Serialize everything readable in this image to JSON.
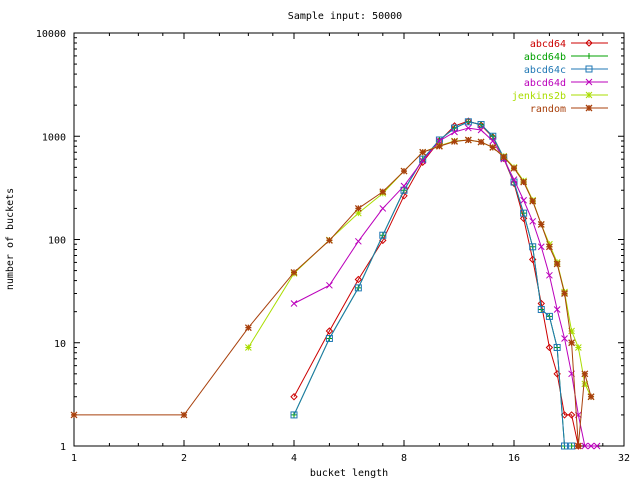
{
  "chart_data": {
    "type": "line",
    "title": "Sample input: 50000",
    "xlabel": "bucket length",
    "ylabel": "number of buckets",
    "xscale": "log2",
    "yscale": "log10",
    "xlim": [
      1,
      32
    ],
    "ylim": [
      1,
      10000
    ],
    "xticks": [
      1,
      2,
      4,
      8,
      16,
      32
    ],
    "yticks": [
      1,
      10,
      100,
      1000,
      10000
    ],
    "grid": false,
    "legend_position": "top-right",
    "series": [
      {
        "name": "abcd64",
        "color": "#cc0000",
        "marker": "diamond",
        "points": [
          [
            4,
            3
          ],
          [
            5,
            13
          ],
          [
            6,
            41
          ],
          [
            7,
            98
          ],
          [
            8,
            265
          ],
          [
            9,
            560
          ],
          [
            10,
            900
          ],
          [
            11,
            1260
          ],
          [
            12,
            1400
          ],
          [
            13,
            1280
          ],
          [
            14,
            980
          ],
          [
            15,
            610
          ],
          [
            16,
            350
          ],
          [
            17,
            160
          ],
          [
            18,
            64
          ],
          [
            19,
            24
          ],
          [
            20,
            9
          ],
          [
            21,
            5
          ],
          [
            22,
            2
          ],
          [
            23,
            2
          ],
          [
            24,
            1
          ]
        ]
      },
      {
        "name": "abcd64b",
        "color": "#00a000",
        "marker": "plus",
        "points": [
          [
            4,
            2
          ],
          [
            5,
            11
          ],
          [
            6,
            34
          ],
          [
            7,
            110
          ],
          [
            8,
            300
          ],
          [
            9,
            600
          ],
          [
            10,
            920
          ],
          [
            11,
            1200
          ],
          [
            12,
            1380
          ],
          [
            13,
            1300
          ],
          [
            14,
            1000
          ],
          [
            15,
            620
          ],
          [
            16,
            360
          ],
          [
            17,
            180
          ],
          [
            18,
            85
          ],
          [
            19,
            21
          ],
          [
            20,
            18
          ],
          [
            21,
            9
          ],
          [
            22,
            1
          ],
          [
            23,
            1
          ]
        ]
      },
      {
        "name": "abcd64c",
        "color": "#1f77b4",
        "marker": "square",
        "points": [
          [
            4,
            2
          ],
          [
            5,
            11
          ],
          [
            6,
            34
          ],
          [
            7,
            110
          ],
          [
            8,
            300
          ],
          [
            9,
            600
          ],
          [
            10,
            920
          ],
          [
            11,
            1200
          ],
          [
            12,
            1380
          ],
          [
            13,
            1300
          ],
          [
            14,
            1000
          ],
          [
            15,
            620
          ],
          [
            16,
            360
          ],
          [
            17,
            180
          ],
          [
            18,
            85
          ],
          [
            19,
            21
          ],
          [
            20,
            18
          ],
          [
            21,
            9
          ],
          [
            22,
            1
          ],
          [
            23,
            1
          ]
        ]
      },
      {
        "name": "abcd64d",
        "color": "#bb00bb",
        "marker": "cross",
        "points": [
          [
            4,
            24
          ],
          [
            5,
            36
          ],
          [
            6,
            96
          ],
          [
            7,
            200
          ],
          [
            8,
            330
          ],
          [
            9,
            580
          ],
          [
            10,
            900
          ],
          [
            11,
            1100
          ],
          [
            12,
            1200
          ],
          [
            13,
            1150
          ],
          [
            14,
            900
          ],
          [
            15,
            600
          ],
          [
            16,
            380
          ],
          [
            17,
            240
          ],
          [
            18,
            150
          ],
          [
            19,
            85
          ],
          [
            20,
            45
          ],
          [
            21,
            21
          ],
          [
            22,
            11
          ],
          [
            23,
            5
          ],
          [
            24,
            2
          ],
          [
            25,
            1
          ],
          [
            26,
            1
          ],
          [
            27,
            1
          ]
        ]
      },
      {
        "name": "jenkins2b",
        "color": "#aadd00",
        "marker": "star",
        "points": [
          [
            3,
            9
          ],
          [
            4,
            47
          ],
          [
            5,
            99
          ],
          [
            6,
            180
          ],
          [
            7,
            280
          ],
          [
            8,
            460
          ],
          [
            9,
            700
          ],
          [
            10,
            810
          ],
          [
            11,
            900
          ],
          [
            12,
            920
          ],
          [
            13,
            880
          ],
          [
            14,
            780
          ],
          [
            15,
            640
          ],
          [
            16,
            500
          ],
          [
            17,
            370
          ],
          [
            18,
            240
          ],
          [
            19,
            140
          ],
          [
            20,
            90
          ],
          [
            21,
            60
          ],
          [
            22,
            31
          ],
          [
            23,
            13
          ],
          [
            24,
            9
          ],
          [
            25,
            4
          ],
          [
            26,
            3
          ]
        ]
      },
      {
        "name": "random",
        "color": "#a8400c",
        "marker": "asterisk",
        "points": [
          [
            1,
            2
          ],
          [
            2,
            2
          ],
          [
            3,
            14
          ],
          [
            4,
            48
          ],
          [
            5,
            98
          ],
          [
            6,
            200
          ],
          [
            7,
            290
          ],
          [
            8,
            460
          ],
          [
            9,
            700
          ],
          [
            10,
            800
          ],
          [
            11,
            890
          ],
          [
            12,
            920
          ],
          [
            13,
            880
          ],
          [
            14,
            780
          ],
          [
            15,
            630
          ],
          [
            16,
            490
          ],
          [
            17,
            360
          ],
          [
            18,
            235
          ],
          [
            19,
            140
          ],
          [
            20,
            85
          ],
          [
            21,
            58
          ],
          [
            22,
            30
          ],
          [
            23,
            10
          ],
          [
            24,
            1
          ],
          [
            25,
            5
          ],
          [
            26,
            3
          ]
        ]
      }
    ]
  }
}
